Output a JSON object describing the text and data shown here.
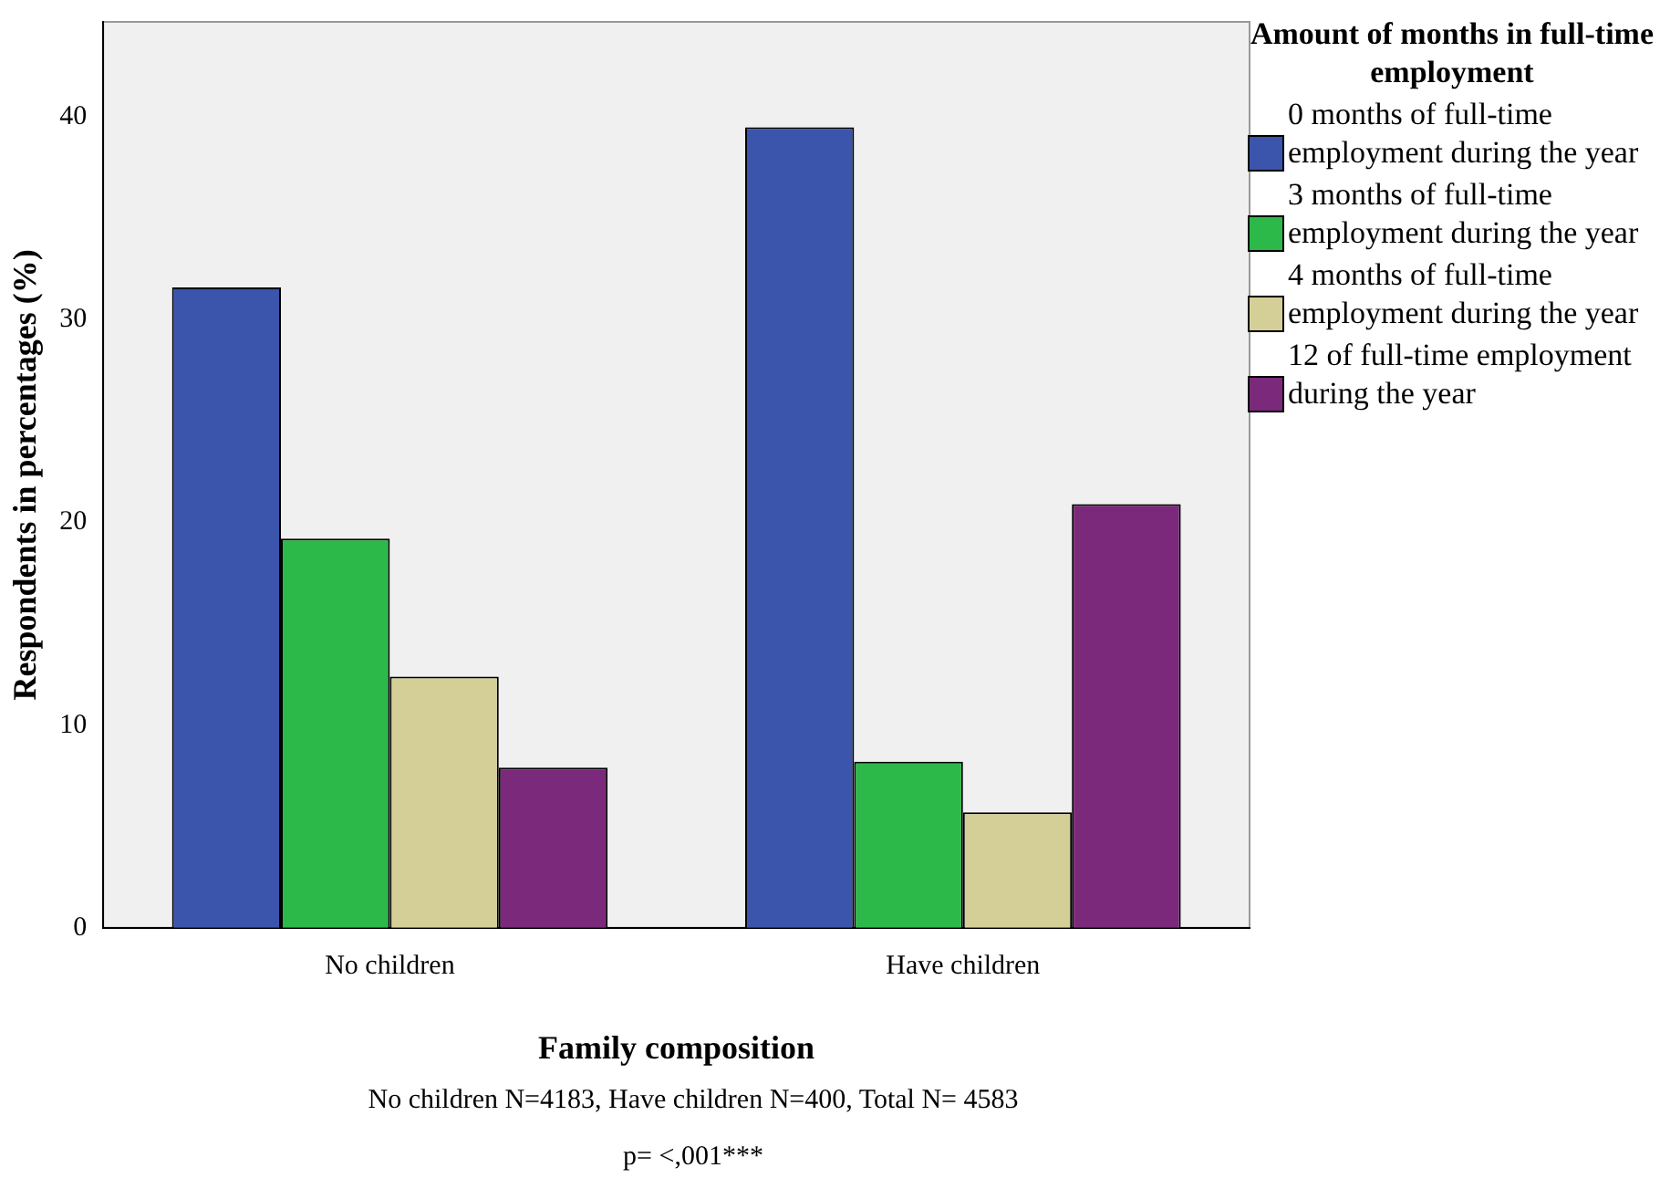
{
  "chart_data": {
    "type": "bar",
    "xlabel": "Family composition",
    "ylabel": "Respondents in percentages (%)",
    "legend_title": "Amount of months in full-time employment",
    "categories": [
      "No children",
      "Have children"
    ],
    "series": [
      {
        "name": "0 months of full-time employment during the year",
        "color": "#3a55ab",
        "values": [
          31.6,
          39.5
        ]
      },
      {
        "name": "3 months of full-time employment during the year",
        "color": "#2db84a",
        "values": [
          19.2,
          8.2
        ]
      },
      {
        "name": "4 months of full-time employment during the year",
        "color": "#d4cf97",
        "values": [
          12.4,
          5.7
        ]
      },
      {
        "name": "12 of full-time employment during the year",
        "color": "#7b2a7b",
        "values": [
          7.9,
          20.9
        ]
      }
    ],
    "ylim": [
      0,
      44.7
    ],
    "yticks": [
      0,
      10,
      20,
      30,
      40
    ],
    "grid": false,
    "legend": "top right",
    "annotations": [
      "No children N=4183, Have children N=400, Total N= 4583",
      "p= <,001***"
    ]
  }
}
